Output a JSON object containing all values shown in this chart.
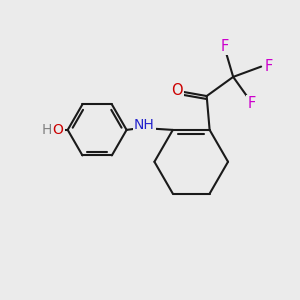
{
  "background_color": "#ebebeb",
  "bond_color": "#1a1a1a",
  "atom_colors": {
    "O": "#cc0000",
    "N": "#2222cc",
    "F": "#cc00cc",
    "H_gray": "#808080"
  },
  "figsize": [
    3.0,
    3.0
  ],
  "dpi": 100
}
